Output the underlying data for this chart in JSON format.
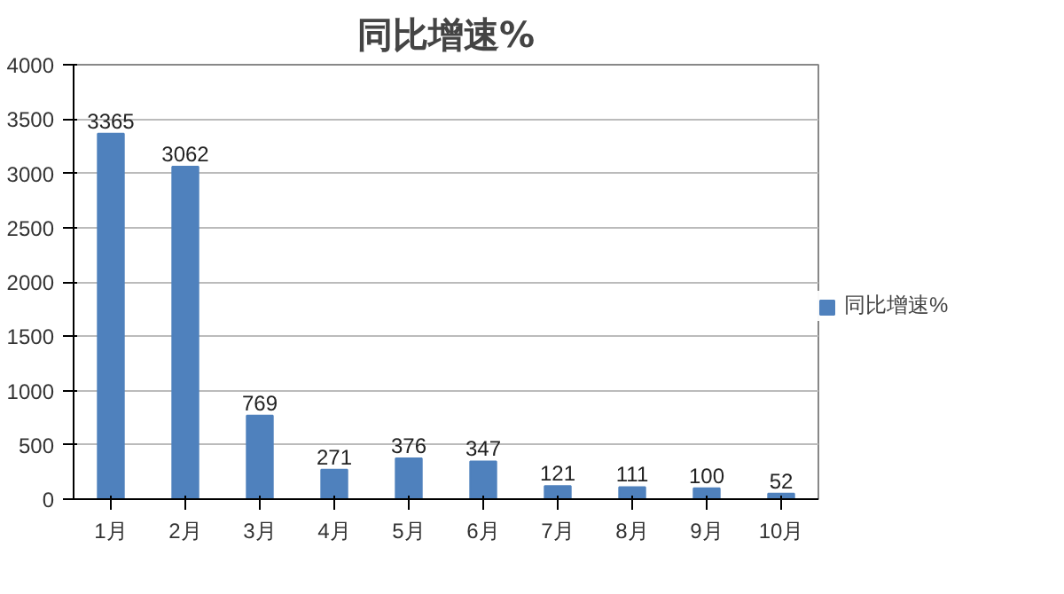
{
  "chart_data": {
    "type": "bar",
    "title": "同比增速%",
    "categories": [
      "1月",
      "2月",
      "3月",
      "4月",
      "5月",
      "6月",
      "7月",
      "8月",
      "9月",
      "10月"
    ],
    "series": [
      {
        "name": "同比增速%",
        "color": "#4f81bd",
        "values": [
          3365,
          3062,
          769,
          271,
          376,
          347,
          121,
          111,
          100,
          52
        ]
      }
    ],
    "ylim": [
      0,
      4000
    ],
    "yticks": [
      0,
      500,
      1000,
      1500,
      2000,
      2500,
      3000,
      3500,
      4000
    ],
    "grid": "y",
    "legend": "right",
    "data_labels": true
  }
}
